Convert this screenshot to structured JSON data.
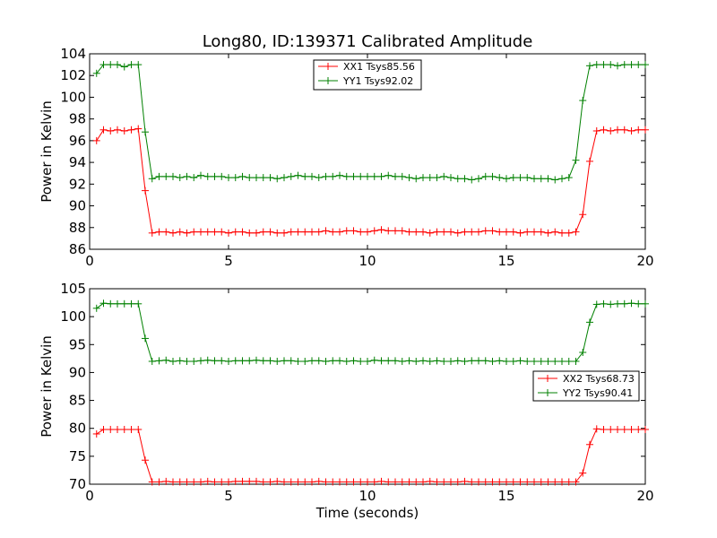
{
  "title": "Long80, ID:139371 Calibrated Amplitude",
  "colors": {
    "xx": "#ff0000",
    "yy": "#008000"
  },
  "chart_data": [
    {
      "type": "line",
      "ylabel": "Power in Kelvin",
      "xlabel": "",
      "xlim": [
        0,
        20
      ],
      "ylim": [
        86,
        104
      ],
      "xticks": [
        "0",
        "5",
        "10",
        "15",
        "20"
      ],
      "yticks": [
        "86",
        "88",
        "90",
        "92",
        "94",
        "96",
        "98",
        "100",
        "102",
        "104"
      ],
      "legend_position": "top-center",
      "x": [
        0.25,
        0.5,
        0.75,
        1.0,
        1.25,
        1.5,
        1.75,
        2.0,
        2.25,
        2.5,
        2.75,
        3.0,
        3.25,
        3.5,
        3.75,
        4.0,
        4.25,
        4.5,
        4.75,
        5.0,
        5.25,
        5.5,
        5.75,
        6.0,
        6.25,
        6.5,
        6.75,
        7.0,
        7.25,
        7.5,
        7.75,
        8.0,
        8.25,
        8.5,
        8.75,
        9.0,
        9.25,
        9.5,
        9.75,
        10.0,
        10.25,
        10.5,
        10.75,
        11.0,
        11.25,
        11.5,
        11.75,
        12.0,
        12.25,
        12.5,
        12.75,
        13.0,
        13.25,
        13.5,
        13.75,
        14.0,
        14.25,
        14.5,
        14.75,
        15.0,
        15.25,
        15.5,
        15.75,
        16.0,
        16.25,
        16.5,
        16.75,
        17.0,
        17.25,
        17.5,
        17.75,
        18.0,
        18.25,
        18.5,
        18.75,
        19.0,
        19.25,
        19.5,
        19.75,
        20.0
      ],
      "series": [
        {
          "name": "XX1 Tsys85.56",
          "color": "#ff0000",
          "values": [
            96.0,
            97.0,
            96.9,
            97.0,
            96.9,
            97.0,
            97.1,
            91.4,
            87.5,
            87.6,
            87.6,
            87.5,
            87.6,
            87.5,
            87.6,
            87.6,
            87.6,
            87.6,
            87.6,
            87.5,
            87.6,
            87.6,
            87.5,
            87.5,
            87.6,
            87.6,
            87.5,
            87.5,
            87.6,
            87.6,
            87.6,
            87.6,
            87.6,
            87.7,
            87.6,
            87.6,
            87.7,
            87.7,
            87.6,
            87.6,
            87.7,
            87.8,
            87.7,
            87.7,
            87.7,
            87.6,
            87.6,
            87.6,
            87.5,
            87.6,
            87.6,
            87.6,
            87.5,
            87.6,
            87.6,
            87.6,
            87.7,
            87.7,
            87.6,
            87.6,
            87.6,
            87.5,
            87.6,
            87.6,
            87.6,
            87.5,
            87.6,
            87.5,
            87.5,
            87.6,
            89.2,
            94.1,
            96.9,
            97.0,
            96.9,
            97.0,
            97.0,
            96.9,
            97.0,
            97.0
          ]
        },
        {
          "name": "YY1 Tsys92.02",
          "color": "#008000",
          "values": [
            102.2,
            103.0,
            103.0,
            103.0,
            102.8,
            103.0,
            103.0,
            96.8,
            92.5,
            92.7,
            92.7,
            92.7,
            92.6,
            92.7,
            92.6,
            92.8,
            92.7,
            92.7,
            92.7,
            92.6,
            92.6,
            92.7,
            92.6,
            92.6,
            92.6,
            92.6,
            92.5,
            92.6,
            92.7,
            92.8,
            92.7,
            92.7,
            92.6,
            92.7,
            92.7,
            92.8,
            92.7,
            92.7,
            92.7,
            92.7,
            92.7,
            92.7,
            92.8,
            92.7,
            92.7,
            92.6,
            92.5,
            92.6,
            92.6,
            92.6,
            92.7,
            92.6,
            92.5,
            92.5,
            92.4,
            92.5,
            92.7,
            92.7,
            92.6,
            92.5,
            92.6,
            92.6,
            92.6,
            92.5,
            92.5,
            92.5,
            92.4,
            92.5,
            92.6,
            94.2,
            99.7,
            102.9,
            103.0,
            103.0,
            103.0,
            102.9,
            103.0,
            103.0,
            103.0,
            103.0
          ]
        }
      ]
    },
    {
      "type": "line",
      "ylabel": "Power in Kelvin",
      "xlabel": "Time (seconds)",
      "xlim": [
        0,
        20
      ],
      "ylim": [
        70,
        105
      ],
      "xticks": [
        "0",
        "5",
        "10",
        "15",
        "20"
      ],
      "yticks": [
        "70",
        "75",
        "80",
        "85",
        "90",
        "95",
        "100",
        "105"
      ],
      "legend_position": "center-right",
      "x": [
        0.25,
        0.5,
        0.75,
        1.0,
        1.25,
        1.5,
        1.75,
        2.0,
        2.25,
        2.5,
        2.75,
        3.0,
        3.25,
        3.5,
        3.75,
        4.0,
        4.25,
        4.5,
        4.75,
        5.0,
        5.25,
        5.5,
        5.75,
        6.0,
        6.25,
        6.5,
        6.75,
        7.0,
        7.25,
        7.5,
        7.75,
        8.0,
        8.25,
        8.5,
        8.75,
        9.0,
        9.25,
        9.5,
        9.75,
        10.0,
        10.25,
        10.5,
        10.75,
        11.0,
        11.25,
        11.5,
        11.75,
        12.0,
        12.25,
        12.5,
        12.75,
        13.0,
        13.25,
        13.5,
        13.75,
        14.0,
        14.25,
        14.5,
        14.75,
        15.0,
        15.25,
        15.5,
        15.75,
        16.0,
        16.25,
        16.5,
        16.75,
        17.0,
        17.25,
        17.5,
        17.75,
        18.0,
        18.25,
        18.5,
        18.75,
        19.0,
        19.25,
        19.5,
        19.75,
        20.0
      ],
      "series": [
        {
          "name": "XX2 Tsys68.73",
          "color": "#ff0000",
          "values": [
            79.0,
            79.8,
            79.8,
            79.8,
            79.8,
            79.8,
            79.8,
            74.3,
            70.4,
            70.4,
            70.5,
            70.4,
            70.4,
            70.4,
            70.4,
            70.4,
            70.5,
            70.4,
            70.4,
            70.4,
            70.5,
            70.5,
            70.5,
            70.5,
            70.4,
            70.4,
            70.5,
            70.4,
            70.4,
            70.4,
            70.4,
            70.4,
            70.5,
            70.4,
            70.4,
            70.4,
            70.4,
            70.4,
            70.4,
            70.4,
            70.4,
            70.5,
            70.4,
            70.4,
            70.4,
            70.4,
            70.4,
            70.4,
            70.5,
            70.4,
            70.4,
            70.4,
            70.4,
            70.5,
            70.4,
            70.4,
            70.4,
            70.4,
            70.4,
            70.4,
            70.4,
            70.4,
            70.4,
            70.4,
            70.4,
            70.4,
            70.4,
            70.4,
            70.4,
            70.4,
            72.0,
            77.1,
            79.9,
            79.8,
            79.8,
            79.8,
            79.8,
            79.8,
            79.8,
            79.8
          ]
        },
        {
          "name": "YY2 Tsys90.41",
          "color": "#008000",
          "values": [
            101.5,
            102.4,
            102.3,
            102.3,
            102.3,
            102.3,
            102.3,
            96.1,
            92.0,
            92.1,
            92.2,
            92.0,
            92.1,
            92.0,
            92.0,
            92.1,
            92.2,
            92.1,
            92.1,
            92.0,
            92.1,
            92.1,
            92.1,
            92.2,
            92.1,
            92.1,
            92.0,
            92.1,
            92.1,
            92.0,
            92.0,
            92.1,
            92.1,
            92.0,
            92.1,
            92.1,
            92.0,
            92.1,
            92.0,
            92.0,
            92.2,
            92.1,
            92.1,
            92.1,
            92.0,
            92.1,
            92.0,
            92.1,
            92.0,
            92.1,
            92.0,
            92.0,
            92.1,
            92.0,
            92.1,
            92.1,
            92.1,
            92.0,
            92.1,
            92.0,
            92.0,
            92.1,
            92.0,
            92.0,
            92.0,
            92.0,
            92.0,
            92.0,
            92.0,
            92.0,
            93.6,
            99.0,
            102.2,
            102.3,
            102.2,
            102.3,
            102.3,
            102.4,
            102.3,
            102.3
          ]
        }
      ]
    }
  ]
}
